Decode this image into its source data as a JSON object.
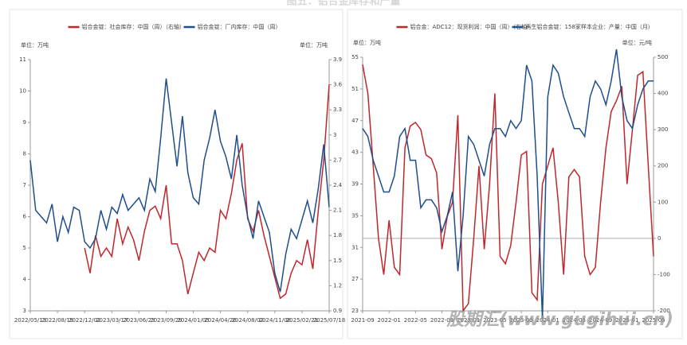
{
  "title": "图五：铝合金库存和产量",
  "watermark": "股期汇(www.gugihui.cn)",
  "chart_data": [
    {
      "type": "line",
      "y_label": "单位：万吨",
      "y2_label": "单位：万吨",
      "categories": [
        "2022/05/13",
        null,
        null,
        null,
        null,
        "2022/08/19",
        null,
        null,
        null,
        null,
        "2022/12/02",
        null,
        null,
        null,
        null,
        "2023/03/17",
        null,
        null,
        null,
        null,
        "2023/06/23",
        null,
        null,
        null,
        null,
        "2023/09/29",
        null,
        null,
        null,
        null,
        "2024/01/05",
        null,
        null,
        null,
        null,
        "2024/04/26",
        null,
        null,
        null,
        null,
        "2024/08/02",
        null,
        null,
        null,
        null,
        "2024/11/08",
        null,
        null,
        null,
        null,
        "2025/02/21",
        null,
        null,
        null,
        null,
        "2025/07/18"
      ],
      "ylim": [
        3,
        11
      ],
      "yticks": [
        3,
        4,
        5,
        6,
        7,
        8,
        9,
        10,
        11
      ],
      "y2lim": [
        0.9,
        3.9
      ],
      "y2ticks": [
        0.9,
        1.2,
        1.5,
        1.8,
        2.1,
        2.4,
        2.7,
        3,
        3.3,
        3.6,
        3.9
      ],
      "series": [
        {
          "name": "铝合金锭：社会库存：中国（周）（右轴）",
          "color": "#c0272d",
          "axis": "y2",
          "values": [
            null,
            null,
            null,
            null,
            null,
            null,
            null,
            null,
            null,
            null,
            1.65,
            1.35,
            1.8,
            1.55,
            1.65,
            1.55,
            2.0,
            1.7,
            1.9,
            1.75,
            1.5,
            1.85,
            2.1,
            2.15,
            2.0,
            2.4,
            1.7,
            1.7,
            1.5,
            1.1,
            1.35,
            1.6,
            1.5,
            1.65,
            1.6,
            2.1,
            2.0,
            2.3,
            2.7,
            2.9,
            2.0,
            1.85,
            2.1,
            1.8,
            1.55,
            1.3,
            1.05,
            1.1,
            1.35,
            1.5,
            1.45,
            1.75,
            1.4,
            2.1,
            2.7,
            3.6
          ]
        },
        {
          "name": "铝合金锭：厂内库存：中国（周）",
          "color": "#1f4e8c",
          "values": [
            7.8,
            6.2,
            6.0,
            5.8,
            6.4,
            5.2,
            6.0,
            5.5,
            6.3,
            6.2,
            5.2,
            5.0,
            5.3,
            6.2,
            5.6,
            6.3,
            6.1,
            6.7,
            6.2,
            6.4,
            6.6,
            6.2,
            7.2,
            6.8,
            8.5,
            10.4,
            9.0,
            7.6,
            9.2,
            7.4,
            6.6,
            6.4,
            7.8,
            8.5,
            9.4,
            8.4,
            7.9,
            7.2,
            8.6,
            7.0,
            6.0,
            5.3,
            6.5,
            6.0,
            5.5,
            4.2,
            3.6,
            4.8,
            5.6,
            5.3,
            5.9,
            6.5,
            5.8,
            6.9,
            8.3,
            6.3
          ]
        }
      ]
    },
    {
      "type": "line",
      "y_label": "单位：万吨",
      "y2_label": "单位：元/吨",
      "categories": [
        "2021-09",
        null,
        null,
        null,
        null,
        "2022-01",
        null,
        null,
        null,
        null,
        "2022-05",
        null,
        null,
        null,
        null,
        "2022-09",
        null,
        null,
        null,
        null,
        "2023-01",
        null,
        null,
        null,
        null,
        "2023-05",
        null,
        null,
        null,
        null,
        "2023-09",
        null,
        null,
        null,
        null,
        "2024-01",
        null,
        null,
        null,
        null,
        "2024-05",
        null,
        null,
        null,
        null,
        "2024-09",
        null,
        null,
        null,
        null,
        "2025-01",
        null,
        null,
        null,
        null,
        "2025-05"
      ],
      "ylim": [
        23,
        55
      ],
      "yticks": [
        23,
        27,
        31,
        35,
        39,
        43,
        47,
        51,
        55
      ],
      "y2lim": [
        -200,
        500
      ],
      "y2ticks": [
        -200,
        -100,
        0,
        100,
        200,
        300,
        400,
        500
      ],
      "series": [
        {
          "name": "铝合金：ADC12：现货利润：中国（周）（右轴）",
          "color": "#c0272d",
          "axis": "y2",
          "values": [
            480,
            400,
            200,
            0,
            -100,
            50,
            -80,
            -100,
            250,
            310,
            320,
            300,
            230,
            220,
            180,
            -30,
            60,
            100,
            340,
            -200,
            -180,
            0,
            200,
            -30,
            150,
            400,
            -50,
            -70,
            -20,
            100,
            230,
            240,
            -150,
            -170,
            150,
            200,
            250,
            100,
            -100,
            170,
            190,
            170,
            -50,
            -100,
            -80,
            100,
            250,
            350,
            380,
            420,
            150,
            300,
            450,
            460,
            200,
            -50
          ]
        },
        {
          "name": "再生铝合金锭：158家样本企业：产量：中国（月）",
          "color": "#1f4e8c",
          "values": [
            46,
            45,
            42,
            40,
            38,
            38,
            40,
            45,
            46,
            42,
            42,
            36,
            37,
            37,
            36,
            33,
            35,
            38,
            28,
            35,
            45,
            44,
            42,
            40,
            44,
            46,
            46,
            45,
            47,
            46,
            47,
            54,
            52,
            40,
            22,
            50,
            54,
            53,
            50,
            48,
            46,
            46,
            45,
            50,
            52,
            51,
            49,
            52,
            56,
            50,
            47,
            46,
            49,
            51,
            52,
            52
          ]
        }
      ]
    }
  ]
}
